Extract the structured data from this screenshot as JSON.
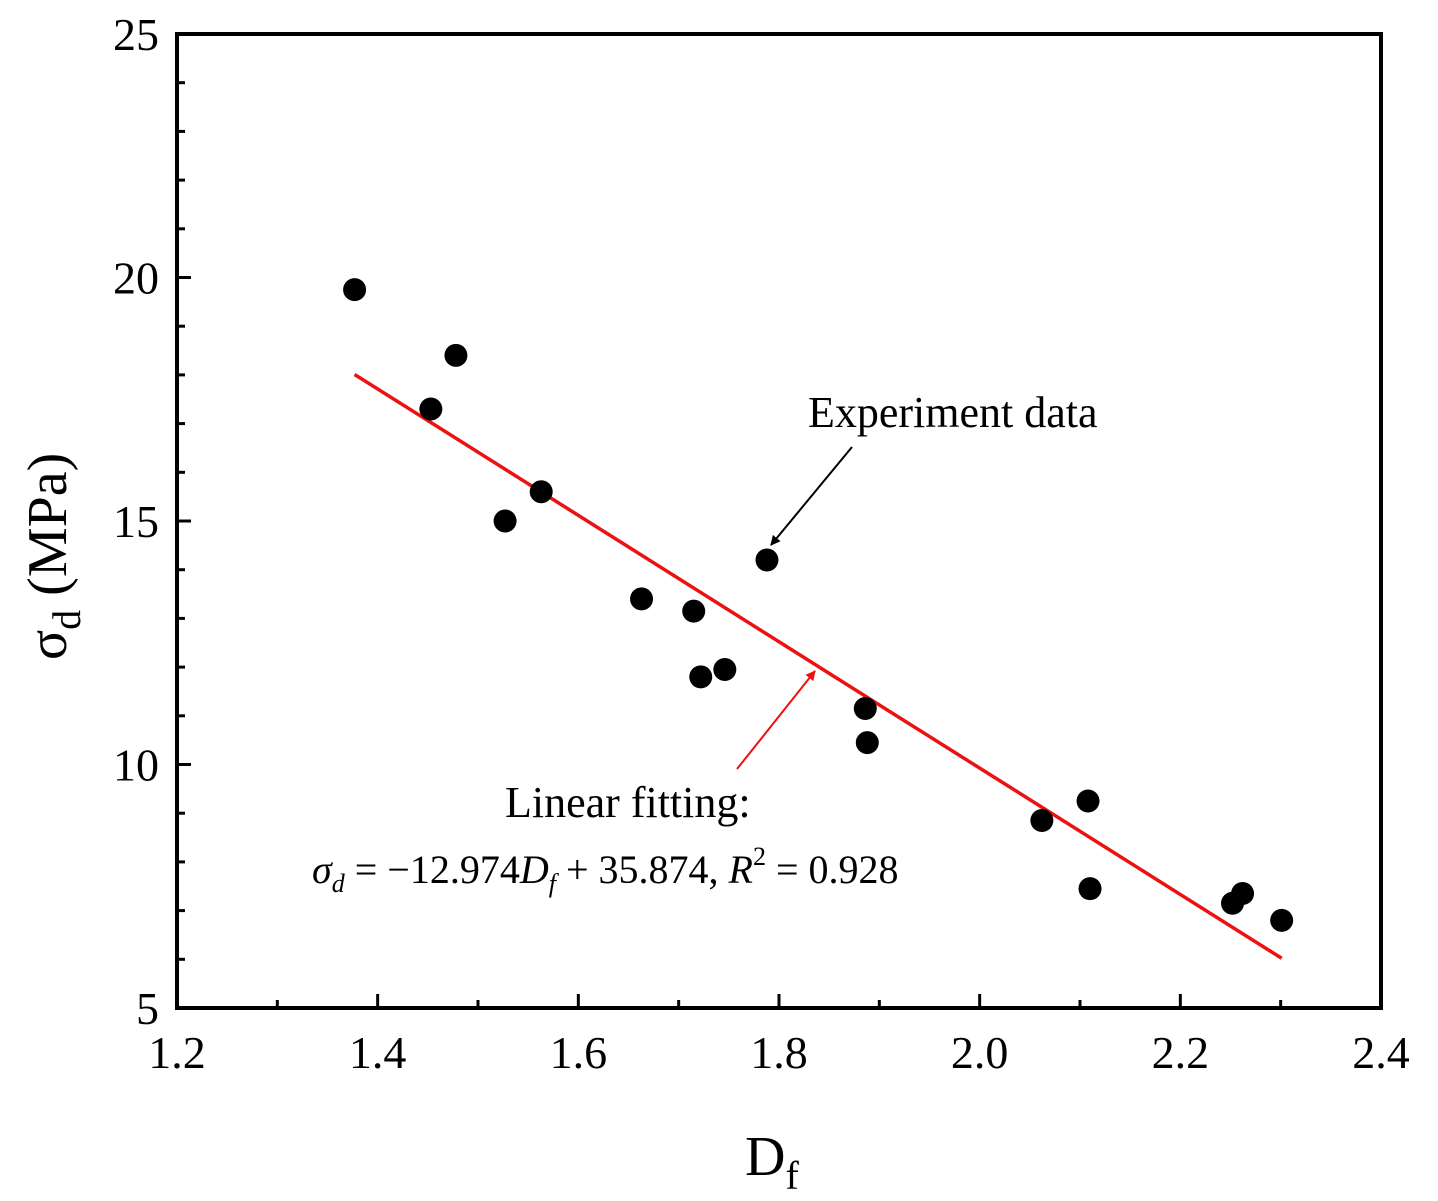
{
  "chart_data": {
    "type": "scatter",
    "xlabel": "D",
    "xlabel_sub": "f",
    "ylabel": "σ",
    "ylabel_sub": "d",
    "ylabel_unit": " (MPa)",
    "xlim": [
      1.2,
      2.4
    ],
    "ylim": [
      5,
      25
    ],
    "x_ticks": [
      1.2,
      1.4,
      1.6,
      1.8,
      2.0,
      2.2,
      2.4
    ],
    "x_tick_labels": [
      "1.2",
      "1.4",
      "1.6",
      "1.8",
      "2.0",
      "2.2",
      "2.4"
    ],
    "x_minor_ticks": [
      1.3,
      1.5,
      1.7,
      1.9,
      2.1,
      2.3
    ],
    "y_ticks": [
      5,
      10,
      15,
      20,
      25
    ],
    "y_tick_labels": [
      "5",
      "10",
      "15",
      "20",
      "25"
    ],
    "y_minor_ticks": [
      6,
      7,
      8,
      9,
      11,
      12,
      13,
      14,
      16,
      17,
      18,
      19,
      21,
      22,
      23,
      24
    ],
    "grid": false,
    "series": [
      {
        "name": "Experiment data",
        "kind": "scatter",
        "color": "#000000",
        "x": [
          1.377,
          1.453,
          1.478,
          1.527,
          1.563,
          1.663,
          1.715,
          1.722,
          1.746,
          1.788,
          1.886,
          1.888,
          2.062,
          2.108,
          2.11,
          2.252,
          2.262,
          2.301
        ],
        "y": [
          19.75,
          17.3,
          18.4,
          15.0,
          15.6,
          13.4,
          13.15,
          11.8,
          11.95,
          14.2,
          11.15,
          10.45,
          8.85,
          9.25,
          7.45,
          7.15,
          7.35,
          6.8
        ]
      },
      {
        "name": "Linear fitting",
        "kind": "line",
        "color": "#ee1111",
        "slope": -12.974,
        "intercept": 35.874,
        "x_range": [
          1.377,
          2.301
        ]
      }
    ],
    "annotations": {
      "experiment_label": "Experiment data",
      "fit_label": "Linear fitting:",
      "equation": {
        "lhs": "σ",
        "lhs_sub": "d",
        "eq1": " = −12.974",
        "term": "D",
        "term_sub": "f",
        "rest": " + 35.874, ",
        "r": "R",
        "r_sup": "2",
        "r_val": " = 0.928"
      }
    }
  }
}
